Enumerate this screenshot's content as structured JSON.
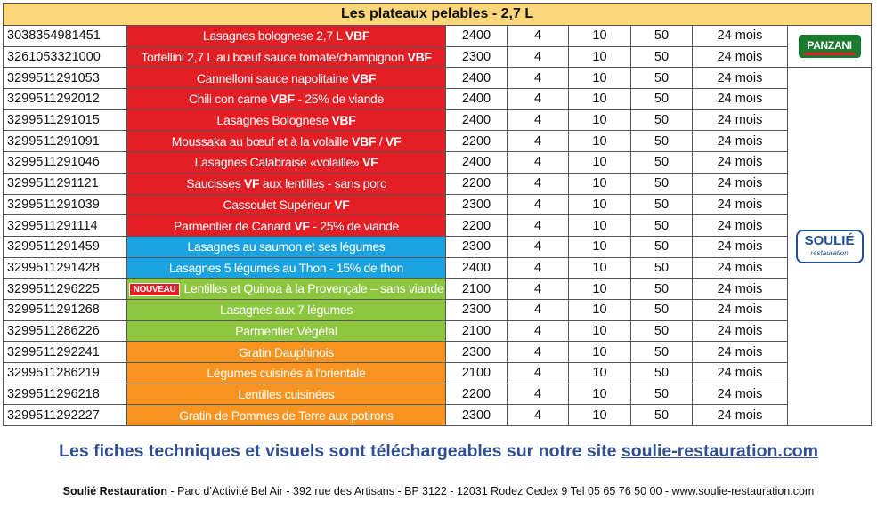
{
  "table": {
    "title": "Les plateaux pelables - 2,7 L",
    "brands": {
      "panzani": "PANZANI",
      "soulie": "SOULIÉ",
      "soulie_sub": "restauration"
    },
    "colors": {
      "red": "#e31e24",
      "blue": "#1aa3e0",
      "green": "#8dc63f",
      "orange": "#f7931e",
      "header": "#fbd77a"
    },
    "rows": [
      {
        "ean": "3038354981451",
        "cat": "red",
        "name": [
          {
            "t": "Lasagnes bolognese 2,7 L "
          },
          {
            "t": "VBF",
            "b": true
          }
        ],
        "c1": "2400",
        "c2": "4",
        "c3": "10",
        "c4": "50",
        "dlc": "24 mois"
      },
      {
        "ean": "3261053321000",
        "cat": "red",
        "name": [
          {
            "t": "Tortellini 2,7 L au bœuf sauce tomate/champignon "
          },
          {
            "t": "VBF",
            "b": true
          }
        ],
        "c1": "2300",
        "c2": "4",
        "c3": "10",
        "c4": "50",
        "dlc": "24 mois"
      },
      {
        "ean": "3299511291053",
        "cat": "red",
        "name": [
          {
            "t": "Cannelloni sauce napolitaine "
          },
          {
            "t": "VBF",
            "b": true
          }
        ],
        "c1": "2400",
        "c2": "4",
        "c3": "10",
        "c4": "50",
        "dlc": "24 mois"
      },
      {
        "ean": "3299511292012",
        "cat": "red",
        "name": [
          {
            "t": "Chili con carne "
          },
          {
            "t": "VBF",
            "b": true
          },
          {
            "t": " - 25% de viande"
          }
        ],
        "c1": "2400",
        "c2": "4",
        "c3": "10",
        "c4": "50",
        "dlc": "24 mois"
      },
      {
        "ean": "3299511291015",
        "cat": "red",
        "name": [
          {
            "t": "Lasagnes Bolognese "
          },
          {
            "t": "VBF",
            "b": true
          }
        ],
        "c1": "2400",
        "c2": "4",
        "c3": "10",
        "c4": "50",
        "dlc": "24 mois"
      },
      {
        "ean": "3299511291091",
        "cat": "red",
        "name": [
          {
            "t": "Moussaka au bœuf et à la volaille "
          },
          {
            "t": "VBF",
            "b": true
          },
          {
            "t": " / "
          },
          {
            "t": "VF",
            "b": true
          }
        ],
        "c1": "2200",
        "c2": "4",
        "c3": "10",
        "c4": "50",
        "dlc": "24 mois"
      },
      {
        "ean": "3299511291046",
        "cat": "red",
        "name": [
          {
            "t": "Lasagnes Calabraise «volaille» "
          },
          {
            "t": "VF",
            "b": true
          }
        ],
        "c1": "2400",
        "c2": "4",
        "c3": "10",
        "c4": "50",
        "dlc": "24 mois"
      },
      {
        "ean": "3299511291121",
        "cat": "red",
        "name": [
          {
            "t": "Saucisses "
          },
          {
            "t": "VF",
            "b": true
          },
          {
            "t": " aux lentilles - sans porc"
          }
        ],
        "c1": "2200",
        "c2": "4",
        "c3": "10",
        "c4": "50",
        "dlc": "24 mois"
      },
      {
        "ean": "3299511291039",
        "cat": "red",
        "name": [
          {
            "t": "Cassoulet Supérieur "
          },
          {
            "t": "VF",
            "b": true
          }
        ],
        "c1": "2300",
        "c2": "4",
        "c3": "10",
        "c4": "50",
        "dlc": "24 mois"
      },
      {
        "ean": "3299511291114",
        "cat": "red",
        "name": [
          {
            "t": "Parmentier de Canard "
          },
          {
            "t": "VF",
            "b": true
          },
          {
            "t": " - 25% de viande"
          }
        ],
        "c1": "2200",
        "c2": "4",
        "c3": "10",
        "c4": "50",
        "dlc": "24 mois"
      },
      {
        "ean": "3299511291459",
        "cat": "blue",
        "name": [
          {
            "t": "Lasagnes au saumon et ses légumes"
          }
        ],
        "c1": "2300",
        "c2": "4",
        "c3": "10",
        "c4": "50",
        "dlc": "24 mois"
      },
      {
        "ean": "3299511291428",
        "cat": "blue",
        "name": [
          {
            "t": "Lasagnes 5 légumes au Thon - 15% de thon"
          }
        ],
        "c1": "2400",
        "c2": "4",
        "c3": "10",
        "c4": "50",
        "dlc": "24 mois"
      },
      {
        "ean": "3299511296225",
        "cat": "green",
        "badge": "NOUVEAU",
        "name": [
          {
            "t": "Lentilles et Quinoa à la Provençale – sans viande"
          }
        ],
        "c1": "2100",
        "c2": "4",
        "c3": "10",
        "c4": "50",
        "dlc": "24 mois"
      },
      {
        "ean": "3299511291268",
        "cat": "green",
        "name": [
          {
            "t": "Lasagnes aux 7 légumes"
          }
        ],
        "c1": "2300",
        "c2": "4",
        "c3": "10",
        "c4": "50",
        "dlc": "24 mois"
      },
      {
        "ean": "3299511286226",
        "cat": "green",
        "name": [
          {
            "t": "Parmentier Végétal"
          }
        ],
        "c1": "2100",
        "c2": "4",
        "c3": "10",
        "c4": "50",
        "dlc": "24 mois"
      },
      {
        "ean": "3299511292241",
        "cat": "orange",
        "name": [
          {
            "t": "Gratin Dauphinois"
          }
        ],
        "c1": "2300",
        "c2": "4",
        "c3": "10",
        "c4": "50",
        "dlc": "24 mois"
      },
      {
        "ean": "3299511286219",
        "cat": "orange",
        "name": [
          {
            "t": "Légumes cuisinés à l'orientale"
          }
        ],
        "c1": "2100",
        "c2": "4",
        "c3": "10",
        "c4": "50",
        "dlc": "24 mois"
      },
      {
        "ean": "3299511296218",
        "cat": "orange",
        "name": [
          {
            "t": "Lentilles cuisinées"
          }
        ],
        "c1": "2200",
        "c2": "4",
        "c3": "10",
        "c4": "50",
        "dlc": "24 mois"
      },
      {
        "ean": "3299511292227",
        "cat": "orange",
        "name": [
          {
            "t": "Gratin de Pommes de Terre aux potirons"
          }
        ],
        "c1": "2300",
        "c2": "4",
        "c3": "10",
        "c4": "50",
        "dlc": "24 mois"
      }
    ]
  },
  "banner": {
    "text": "Les fiches techniques et visuels sont téléchargeables sur notre site ",
    "link": "soulie-restauration.com"
  },
  "footer": {
    "company": "Soulié Restauration",
    "address": " - Parc d’Activité Bel Air - 392 rue des Artisans - BP 3122 - 12031 Rodez Cedex 9 Tel 05 65 76 50 00 - www.soulie-restauration.com"
  }
}
